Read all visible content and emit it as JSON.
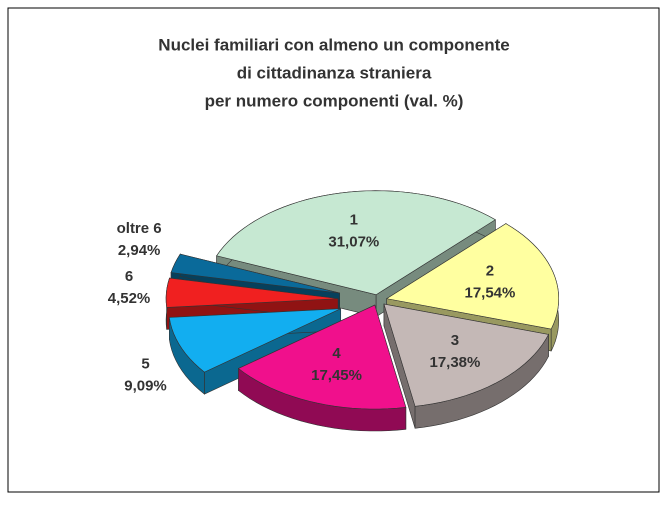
{
  "chart_data": {
    "type": "pie",
    "title": [
      "Nuclei familiari con almeno un componente",
      "di cittadinanza straniera",
      "per numero componenti (val. %)"
    ],
    "categories": [
      "1",
      "2",
      "3",
      "4",
      "5",
      "6",
      "oltre 6"
    ],
    "values": [
      31.07,
      17.54,
      17.38,
      17.45,
      9.09,
      4.52,
      2.94
    ],
    "value_labels": [
      "31,07%",
      "17,54%",
      "17,38%",
      "17,45%",
      "9,09%",
      "4,52%",
      "2,94%"
    ],
    "colors": [
      "#c6e8d2",
      "#ffffa0",
      "#c4b8b6",
      "#f0108c",
      "#12aef0",
      "#f02020",
      "#0a6a9a"
    ]
  }
}
